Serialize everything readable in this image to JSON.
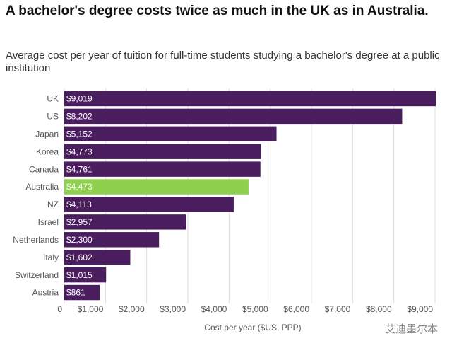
{
  "chart_data": {
    "type": "bar",
    "orientation": "horizontal",
    "title": "A bachelor's degree costs twice as much in the UK as in Australia.",
    "subtitle": "Average cost per year of tuition for full-time students studying a bachelor's degree at a public institution",
    "x_label": "Cost per year ($US, PPP)",
    "categories": [
      "UK",
      "US",
      "Japan",
      "Korea",
      "Canada",
      "Australia",
      "NZ",
      "Israel",
      "Netherlands",
      "Italy",
      "Switzerland",
      "Austria"
    ],
    "values": [
      9019,
      8202,
      5152,
      4773,
      4761,
      4473,
      4113,
      2957,
      2300,
      1602,
      1015,
      861
    ],
    "value_labels": [
      "$9,019",
      "$8,202",
      "$5,152",
      "$4,773",
      "$4,761",
      "$4,473",
      "$4,113",
      "$2,957",
      "$2,300",
      "$1,602",
      "$1,015",
      "$861"
    ],
    "colors": [
      "#4a1d5e",
      "#4a1d5e",
      "#4a1d5e",
      "#4a1d5e",
      "#4a1d5e",
      "#8fd14f",
      "#4a1d5e",
      "#4a1d5e",
      "#4a1d5e",
      "#4a1d5e",
      "#4a1d5e",
      "#4a1d5e"
    ],
    "xlim": [
      0,
      9000
    ],
    "xticks": [
      0,
      {
        "value": 1000,
        "label": "$1,000"
      },
      {
        "value": 2000,
        "label": "$2,000"
      },
      {
        "value": 3000,
        "label": "$3,000"
      },
      {
        "value": 4000,
        "label": "$4,000"
      },
      {
        "value": 5000,
        "label": "$5,000"
      },
      {
        "value": 6000,
        "label": "$6,000"
      },
      {
        "value": 7000,
        "label": "$7,000"
      },
      {
        "value": 8000,
        "label": "$8,000"
      },
      {
        "value": 9000,
        "label": "$9,000"
      }
    ],
    "grid": true,
    "watermark": "艾迪墨尔本"
  }
}
